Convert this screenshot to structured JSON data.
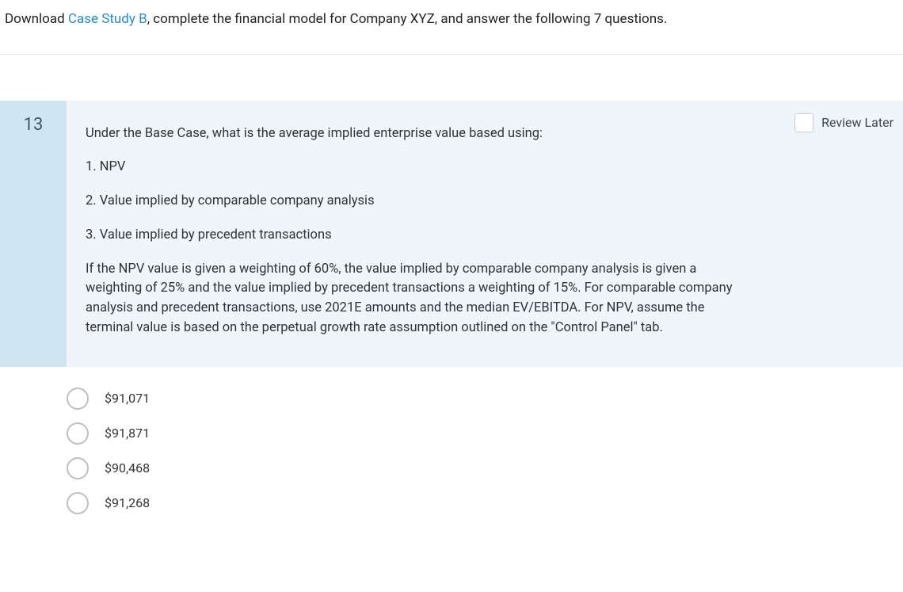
{
  "instructions": {
    "prefix": "Download ",
    "link_text": "Case Study B",
    "suffix": ", complete the financial model for Company XYZ, and answer the following 7 questions."
  },
  "question": {
    "number": "13",
    "review_later_label": "Review Later",
    "body": {
      "intro": "Under the Base Case, what is the average implied enterprise value based using:",
      "item1": "1. NPV",
      "item2": "2. Value implied by comparable company analysis",
      "item3": "3. Value implied by precedent transactions",
      "detail": "If the NPV value is given a weighting of 60%, the value implied by comparable company analysis is given a weighting of 25% and the value implied by precedent transactions a weighting of 15%. For comparable company analysis and precedent transactions, use 2021E amounts and the median EV/EBITDA. For NPV, assume the terminal value is based on the perpetual growth rate assumption outlined on the \"Control Panel\" tab."
    }
  },
  "options": [
    {
      "label": "$91,071"
    },
    {
      "label": "$91,871"
    },
    {
      "label": "$90,468"
    },
    {
      "label": "$91,268"
    }
  ],
  "colors": {
    "link": "#2a8cc7",
    "qnum_bg": "#cfe6f2",
    "qbody_bg": "#eef6fb",
    "text": "#333333"
  }
}
